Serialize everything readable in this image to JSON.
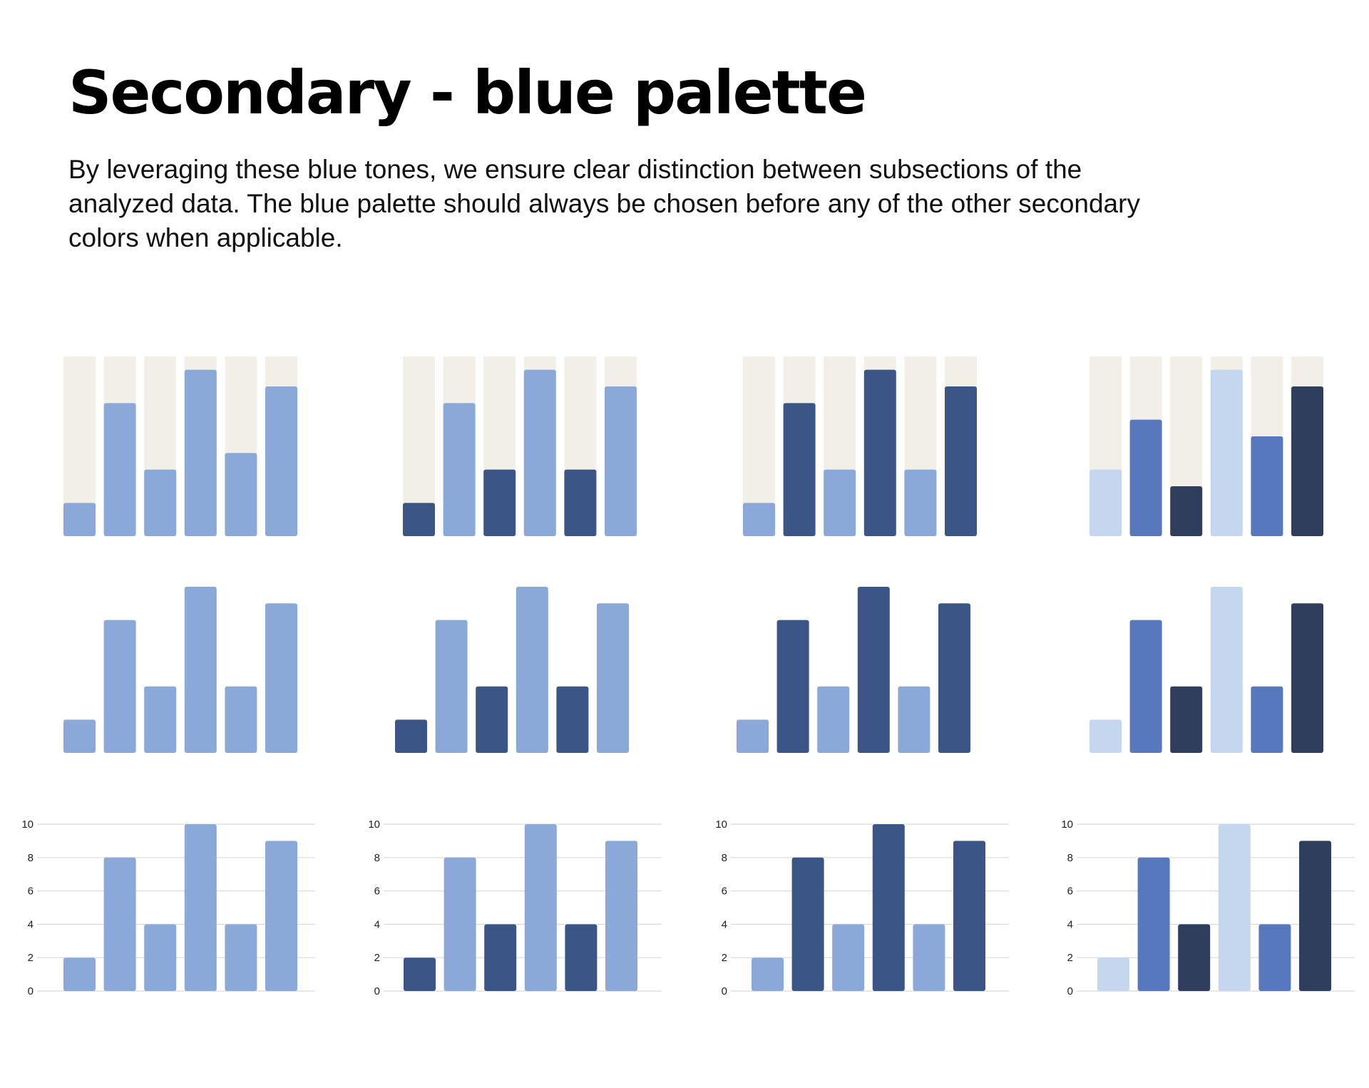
{
  "page": {
    "title": "Secondary - blue palette",
    "description": "By leveraging these blue tones, we ensure clear distinction between subsections of the analyzed data. The blue palette should always be chosen before any of the other secondary colors when applicable."
  },
  "colors": {
    "track": "#F2EEE8",
    "blue_medium": "#8BA9D8",
    "blue_dark": "#3B5686",
    "blue_light": "#C5D6EF",
    "blue_royal": "#5778BC",
    "navy": "#2F3E5C",
    "gridline": "#DADADA",
    "tick_label": "#222222"
  },
  "chart_data": [
    {
      "type": "bar",
      "style": "track",
      "values": [
        2,
        8,
        4,
        10,
        5,
        9
      ],
      "ylim": [
        0,
        10.8
      ],
      "colors": [
        "blue_medium",
        "blue_medium",
        "blue_medium",
        "blue_medium",
        "blue_medium",
        "blue_medium"
      ]
    },
    {
      "type": "bar",
      "style": "track",
      "values": [
        2,
        8,
        4,
        10,
        4,
        9
      ],
      "ylim": [
        0,
        10.8
      ],
      "colors": [
        "blue_dark",
        "blue_medium",
        "blue_dark",
        "blue_medium",
        "blue_dark",
        "blue_medium"
      ]
    },
    {
      "type": "bar",
      "style": "track",
      "values": [
        2,
        8,
        4,
        10,
        4,
        9
      ],
      "ylim": [
        0,
        10.8
      ],
      "colors": [
        "blue_medium",
        "blue_dark",
        "blue_medium",
        "blue_dark",
        "blue_medium",
        "blue_dark"
      ]
    },
    {
      "type": "bar",
      "style": "track",
      "values": [
        4,
        7,
        3,
        10,
        6,
        9
      ],
      "ylim": [
        0,
        10.8
      ],
      "colors": [
        "blue_light",
        "blue_royal",
        "navy",
        "blue_light",
        "blue_royal",
        "navy"
      ]
    },
    {
      "type": "bar",
      "style": "plain",
      "values": [
        2,
        8,
        4,
        10,
        4,
        9
      ],
      "ylim": [
        0,
        10
      ],
      "colors": [
        "blue_medium",
        "blue_medium",
        "blue_medium",
        "blue_medium",
        "blue_medium",
        "blue_medium"
      ]
    },
    {
      "type": "bar",
      "style": "plain",
      "values": [
        2,
        8,
        4,
        10,
        4,
        9
      ],
      "ylim": [
        0,
        10
      ],
      "colors": [
        "blue_dark",
        "blue_medium",
        "blue_dark",
        "blue_medium",
        "blue_dark",
        "blue_medium"
      ]
    },
    {
      "type": "bar",
      "style": "plain",
      "values": [
        2,
        8,
        4,
        10,
        4,
        9
      ],
      "ylim": [
        0,
        10
      ],
      "colors": [
        "blue_medium",
        "blue_dark",
        "blue_medium",
        "blue_dark",
        "blue_medium",
        "blue_dark"
      ]
    },
    {
      "type": "bar",
      "style": "plain",
      "values": [
        2,
        8,
        4,
        10,
        4,
        9
      ],
      "ylim": [
        0,
        10
      ],
      "colors": [
        "blue_light",
        "blue_royal",
        "navy",
        "blue_light",
        "blue_royal",
        "navy"
      ]
    },
    {
      "type": "bar",
      "style": "axis",
      "values": [
        2,
        8,
        4,
        10,
        4,
        9
      ],
      "ylim": [
        0,
        10
      ],
      "yticks": [
        "0",
        "2",
        "4",
        "6",
        "8",
        "10"
      ],
      "grid": true,
      "colors": [
        "blue_medium",
        "blue_medium",
        "blue_medium",
        "blue_medium",
        "blue_medium",
        "blue_medium"
      ]
    },
    {
      "type": "bar",
      "style": "axis",
      "values": [
        2,
        8,
        4,
        10,
        4,
        9
      ],
      "ylim": [
        0,
        10
      ],
      "yticks": [
        "0",
        "2",
        "4",
        "6",
        "8",
        "10"
      ],
      "grid": true,
      "colors": [
        "blue_dark",
        "blue_medium",
        "blue_dark",
        "blue_medium",
        "blue_dark",
        "blue_medium"
      ]
    },
    {
      "type": "bar",
      "style": "axis",
      "values": [
        2,
        8,
        4,
        10,
        4,
        9
      ],
      "ylim": [
        0,
        10
      ],
      "yticks": [
        "0",
        "2",
        "4",
        "6",
        "8",
        "10"
      ],
      "grid": true,
      "colors": [
        "blue_medium",
        "blue_dark",
        "blue_medium",
        "blue_dark",
        "blue_medium",
        "blue_dark"
      ]
    },
    {
      "type": "bar",
      "style": "axis",
      "values": [
        2,
        8,
        4,
        10,
        4,
        9
      ],
      "ylim": [
        0,
        10
      ],
      "yticks": [
        "0",
        "2",
        "4",
        "6",
        "8",
        "10"
      ],
      "grid": true,
      "colors": [
        "blue_light",
        "blue_royal",
        "navy",
        "blue_light",
        "blue_royal",
        "navy"
      ]
    }
  ]
}
